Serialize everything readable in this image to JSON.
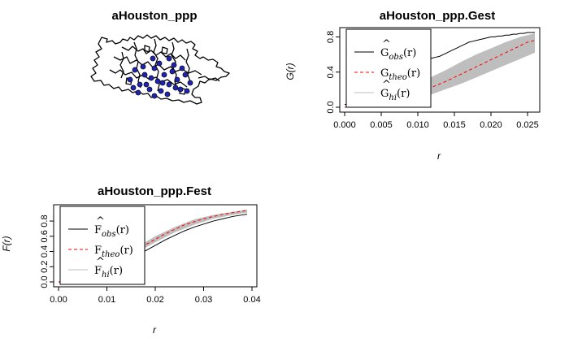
{
  "chart_data": [
    {
      "type": "map",
      "title": "aHouston_ppp",
      "point_color": "#1f24b0"
    },
    {
      "type": "line",
      "title": "aHouston_ppp.Gest",
      "xlabel": "r",
      "ylabel": "G(r)",
      "xlim": [
        0,
        0.026
      ],
      "ylim": [
        0,
        0.85
      ],
      "xticks": [
        "0.000",
        "0.005",
        "0.010",
        "0.015",
        "0.020",
        "0.025"
      ],
      "yticks": [
        "0.0",
        "0.4",
        "0.8"
      ],
      "legend_position": "top-left",
      "legend": [
        {
          "base": "G",
          "hat": true,
          "sub": "obs",
          "suffix": "(r)",
          "color": "#000000",
          "dash": "solid"
        },
        {
          "base": "G",
          "hat": false,
          "sub": "theo",
          "suffix": "(r)",
          "color": "#ff0000",
          "dash": "dashed"
        },
        {
          "base": "G",
          "hat": true,
          "sub": "hi",
          "suffix": "(r)",
          "color": "#bebebe",
          "dash": "solid"
        }
      ],
      "series": {
        "obs": {
          "x": [
            0,
            0.0005,
            0.001,
            0.0015,
            0.002,
            0.0025,
            0.003,
            0.0035,
            0.004,
            0.0045,
            0.005,
            0.0055,
            0.006,
            0.0065,
            0.007,
            0.0075,
            0.008,
            0.0085,
            0.009,
            0.0095,
            0.01,
            0.0105,
            0.011,
            0.0115,
            0.012,
            0.0125,
            0.013,
            0.0135,
            0.014,
            0.0145,
            0.015,
            0.0155,
            0.016,
            0.0165,
            0.017,
            0.0175,
            0.018,
            0.0185,
            0.019,
            0.0195,
            0.02,
            0.0205,
            0.021,
            0.0215,
            0.022,
            0.0225,
            0.023,
            0.0235,
            0.024,
            0.0245,
            0.025,
            0.0255,
            0.026
          ],
          "y": [
            0.03,
            0.04,
            0.05,
            0.06,
            0.07,
            0.09,
            0.11,
            0.14,
            0.17,
            0.21,
            0.25,
            0.29,
            0.33,
            0.37,
            0.4,
            0.43,
            0.46,
            0.48,
            0.5,
            0.51,
            0.52,
            0.53,
            0.54,
            0.55,
            0.56,
            0.57,
            0.58,
            0.6,
            0.62,
            0.64,
            0.66,
            0.68,
            0.7,
            0.72,
            0.74,
            0.75,
            0.76,
            0.77,
            0.78,
            0.79,
            0.8,
            0.8,
            0.81,
            0.81,
            0.82,
            0.82,
            0.83,
            0.83,
            0.84,
            0.84,
            0.85,
            0.85,
            0.85
          ]
        },
        "theo": {
          "x": [
            0,
            0.001,
            0.002,
            0.003,
            0.004,
            0.005,
            0.006,
            0.007,
            0.008,
            0.009,
            0.01,
            0.011,
            0.012,
            0.013,
            0.014,
            0.015,
            0.016,
            0.017,
            0.018,
            0.019,
            0.02,
            0.021,
            0.022,
            0.023,
            0.024,
            0.025,
            0.026
          ],
          "y": [
            0.0,
            0.003,
            0.01,
            0.022,
            0.04,
            0.055,
            0.075,
            0.1,
            0.12,
            0.15,
            0.175,
            0.2,
            0.23,
            0.265,
            0.3,
            0.34,
            0.38,
            0.42,
            0.46,
            0.5,
            0.54,
            0.58,
            0.62,
            0.66,
            0.7,
            0.74,
            0.76
          ]
        },
        "envelope_hi": {
          "x": [
            0,
            0.002,
            0.004,
            0.006,
            0.008,
            0.01,
            0.012,
            0.014,
            0.016,
            0.018,
            0.02,
            0.022,
            0.024,
            0.026
          ],
          "y": [
            0.0,
            0.03,
            0.07,
            0.13,
            0.2,
            0.27,
            0.35,
            0.43,
            0.52,
            0.6,
            0.67,
            0.74,
            0.8,
            0.84
          ]
        },
        "envelope_lo": {
          "x": [
            0,
            0.002,
            0.004,
            0.006,
            0.008,
            0.01,
            0.012,
            0.014,
            0.016,
            0.018,
            0.02,
            0.022,
            0.024,
            0.026
          ],
          "y": [
            0.0,
            0.0,
            0.01,
            0.03,
            0.06,
            0.1,
            0.15,
            0.21,
            0.27,
            0.34,
            0.41,
            0.48,
            0.55,
            0.62
          ]
        }
      }
    },
    {
      "type": "line",
      "title": "aHouston_ppp.Fest",
      "xlabel": "r",
      "ylabel": "F(r)",
      "xlim": [
        0,
        0.04
      ],
      "ylim": [
        0,
        0.95
      ],
      "xticks": [
        "0.00",
        "0.01",
        "0.02",
        "0.03",
        "0.04"
      ],
      "yticks": [
        "0.0",
        "0.2",
        "0.4",
        "0.6",
        "0.8"
      ],
      "legend_position": "top-left",
      "legend": [
        {
          "base": "F",
          "hat": true,
          "sub": "obs",
          "suffix": "(r)",
          "color": "#000000",
          "dash": "solid"
        },
        {
          "base": "F",
          "hat": false,
          "sub": "theo",
          "suffix": "(r)",
          "color": "#ff0000",
          "dash": "dashed"
        },
        {
          "base": "F",
          "hat": true,
          "sub": "hi",
          "suffix": "(r)",
          "color": "#bebebe",
          "dash": "solid"
        }
      ],
      "series": {
        "obs": {
          "x": [
            0,
            0.002,
            0.004,
            0.006,
            0.008,
            0.01,
            0.012,
            0.014,
            0.016,
            0.018,
            0.02,
            0.022,
            0.024,
            0.026,
            0.028,
            0.03,
            0.032,
            0.034,
            0.036,
            0.038,
            0.039
          ],
          "y": [
            0.0,
            0.01,
            0.03,
            0.06,
            0.1,
            0.15,
            0.21,
            0.27,
            0.34,
            0.41,
            0.48,
            0.55,
            0.61,
            0.67,
            0.72,
            0.76,
            0.8,
            0.83,
            0.86,
            0.88,
            0.89
          ]
        },
        "theo": {
          "x": [
            0,
            0.002,
            0.004,
            0.006,
            0.008,
            0.01,
            0.012,
            0.014,
            0.016,
            0.018,
            0.02,
            0.022,
            0.024,
            0.026,
            0.028,
            0.03,
            0.032,
            0.034,
            0.036,
            0.038,
            0.039
          ],
          "y": [
            0.0,
            0.01,
            0.04,
            0.08,
            0.13,
            0.19,
            0.26,
            0.33,
            0.41,
            0.49,
            0.56,
            0.63,
            0.69,
            0.75,
            0.79,
            0.83,
            0.86,
            0.89,
            0.91,
            0.93,
            0.94
          ]
        },
        "envelope_hi": {
          "x": [
            0,
            0.004,
            0.008,
            0.012,
            0.016,
            0.02,
            0.024,
            0.028,
            0.032,
            0.036,
            0.039
          ],
          "y": [
            0.0,
            0.05,
            0.15,
            0.29,
            0.45,
            0.6,
            0.72,
            0.82,
            0.88,
            0.92,
            0.95
          ]
        },
        "envelope_lo": {
          "x": [
            0,
            0.004,
            0.008,
            0.012,
            0.016,
            0.02,
            0.024,
            0.028,
            0.032,
            0.036,
            0.039
          ],
          "y": [
            0.0,
            0.03,
            0.11,
            0.23,
            0.38,
            0.52,
            0.65,
            0.75,
            0.83,
            0.88,
            0.91
          ]
        }
      }
    }
  ]
}
